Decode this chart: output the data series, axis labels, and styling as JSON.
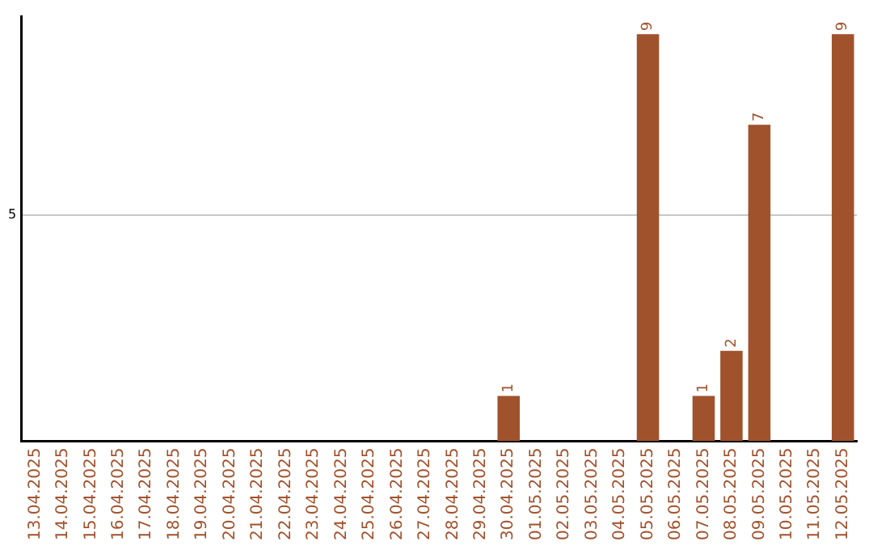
{
  "chart_data": {
    "type": "bar",
    "categories": [
      "13.04.2025",
      "14.04.2025",
      "15.04.2025",
      "16.04.2025",
      "17.04.2025",
      "18.04.2025",
      "19.04.2025",
      "20.04.2025",
      "21.04.2025",
      "22.04.2025",
      "23.04.2025",
      "24.04.2025",
      "25.04.2025",
      "26.04.2025",
      "27.04.2025",
      "28.04.2025",
      "29.04.2025",
      "30.04.2025",
      "01.05.2025",
      "02.05.2025",
      "03.05.2025",
      "04.05.2025",
      "05.05.2025",
      "06.05.2025",
      "07.05.2025",
      "08.05.2025",
      "09.05.2025",
      "10.05.2025",
      "11.05.2025",
      "12.05.2025"
    ],
    "values": [
      null,
      null,
      null,
      null,
      null,
      null,
      null,
      null,
      null,
      null,
      null,
      null,
      null,
      null,
      null,
      null,
      null,
      1,
      null,
      null,
      null,
      null,
      9,
      null,
      1,
      2,
      7,
      null,
      null,
      9
    ],
    "data_labels": true,
    "color": "#a0522d",
    "ylim": [
      0,
      9.4
    ],
    "yticks": [
      5
    ],
    "grid": "y",
    "legend": false
  }
}
